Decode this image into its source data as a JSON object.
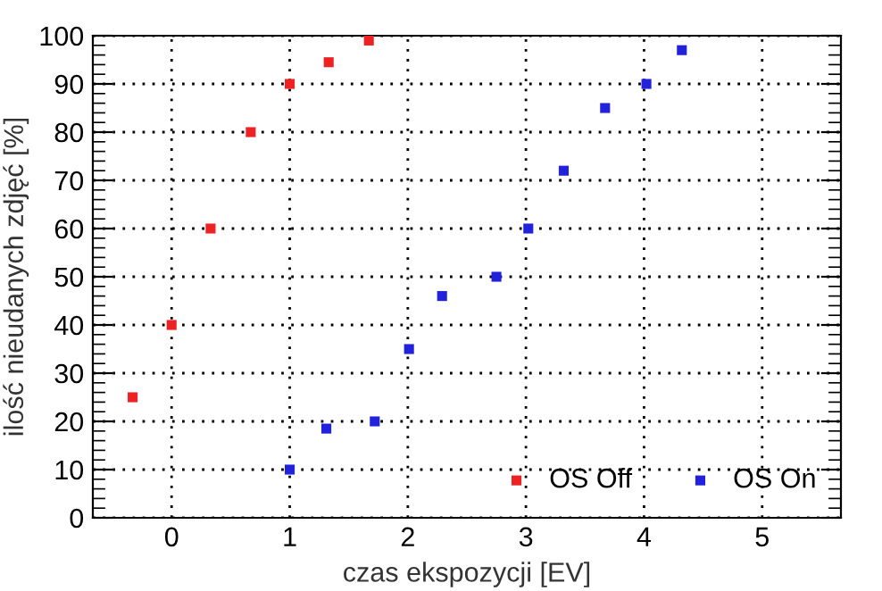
{
  "chart_data": {
    "type": "scatter",
    "xlabel": "czas ekspozycji [EV]",
    "ylabel": "ilość nieudanych zdjęć [%]",
    "xlim": [
      -0.667,
      5.667
    ],
    "xticks": [
      0,
      1,
      2,
      3,
      4,
      5
    ],
    "ylim": [
      0,
      100
    ],
    "yticks": [
      0,
      10,
      20,
      30,
      40,
      50,
      60,
      70,
      80,
      90,
      100
    ],
    "grid": true,
    "legend": "bottom right",
    "marker": "square",
    "series": [
      {
        "name": "OS Off",
        "color": "#ee2222",
        "x": [
          -0.33,
          0,
          0.33,
          0.67,
          1,
          1.33,
          1.67
        ],
        "values": [
          25,
          40,
          60,
          80,
          90,
          94.5,
          99
        ]
      },
      {
        "name": "OS On",
        "color": "#2222dd",
        "x": [
          1,
          1.31,
          1.72,
          2.01,
          2.29,
          2.75,
          3.02,
          3.32,
          3.67,
          4.02,
          4.32
        ],
        "values": [
          10,
          18.5,
          20,
          35,
          46,
          50,
          60,
          72,
          85,
          90,
          97
        ]
      }
    ]
  }
}
